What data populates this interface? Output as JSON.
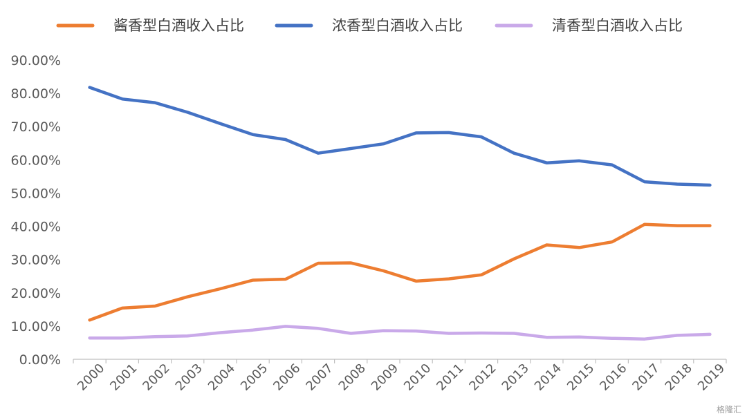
{
  "chart_data": {
    "type": "line",
    "x": [
      "2000",
      "2001",
      "2002",
      "2003",
      "2004",
      "2005",
      "2006",
      "2007",
      "2008",
      "2009",
      "2010",
      "2011",
      "2012",
      "2013",
      "2014",
      "2015",
      "2016",
      "2017",
      "2018",
      "2019"
    ],
    "y_ticks": [
      "0.00%",
      "10.00%",
      "20.00%",
      "30.00%",
      "40.00%",
      "50.00%",
      "60.00%",
      "70.00%",
      "80.00%",
      "90.00%"
    ],
    "ylim": [
      0,
      90
    ],
    "grid": false,
    "legend_position": "top",
    "series": [
      {
        "name": "酱香型白酒收入占比",
        "color": "#ED7D31",
        "values": [
          11.8,
          15.4,
          16.0,
          18.8,
          21.2,
          23.8,
          24.1,
          28.9,
          29.0,
          26.6,
          23.5,
          24.2,
          25.4,
          30.2,
          34.4,
          33.6,
          35.3,
          40.6,
          40.2,
          40.2
        ]
      },
      {
        "name": "浓香型白酒收入占比",
        "color": "#4472C4",
        "values": [
          81.8,
          78.3,
          77.2,
          74.3,
          70.9,
          67.6,
          66.1,
          62.0,
          63.4,
          64.8,
          68.1,
          68.2,
          66.9,
          62.0,
          59.1,
          59.7,
          58.5,
          53.4,
          52.7,
          52.4
        ]
      },
      {
        "name": "清香型白酒收入占比",
        "color": "#C9A9E9",
        "values": [
          6.4,
          6.4,
          6.8,
          7.0,
          8.0,
          8.8,
          9.9,
          9.3,
          7.8,
          8.6,
          8.5,
          7.8,
          7.9,
          7.8,
          6.6,
          6.7,
          6.3,
          6.1,
          7.2,
          7.5
        ]
      }
    ]
  },
  "watermark": "格隆汇"
}
